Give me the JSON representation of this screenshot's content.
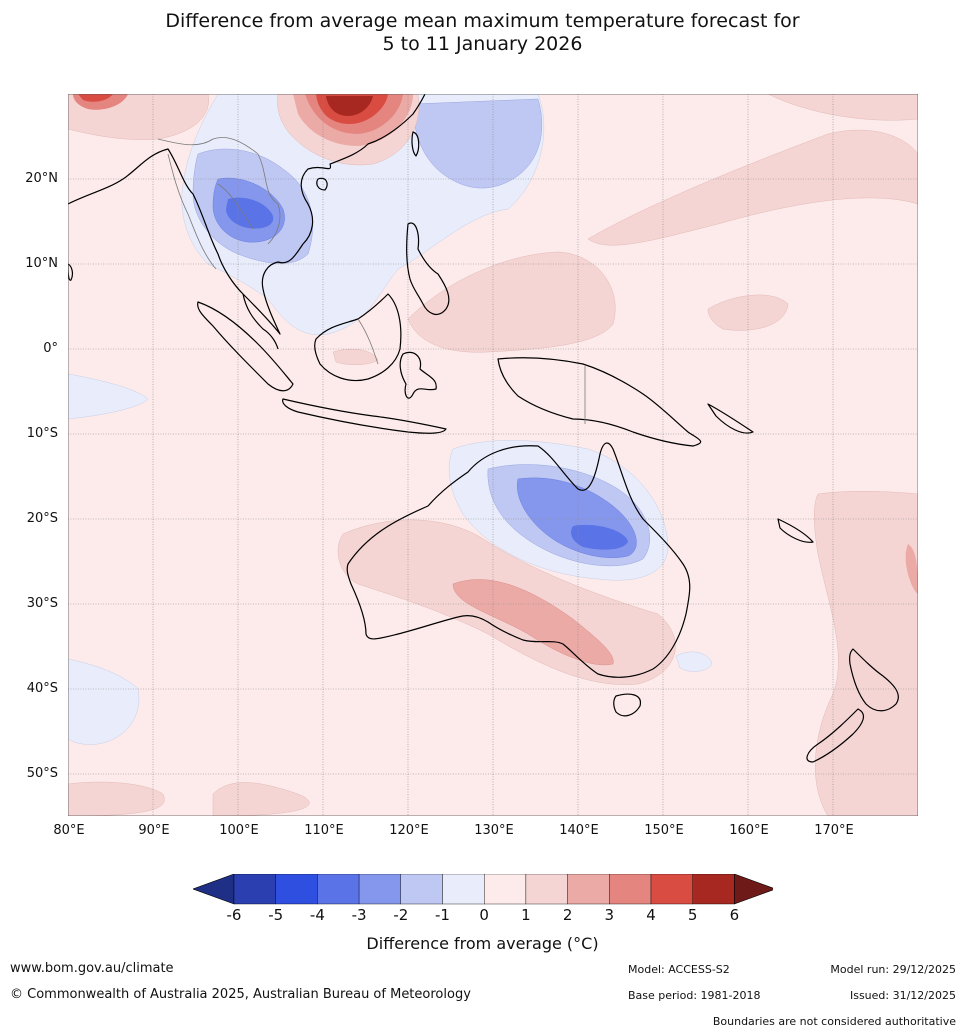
{
  "title": {
    "line1": "Difference from average mean maximum temperature forecast for",
    "line2": "5 to 11 January 2026"
  },
  "map": {
    "lat_labels": [
      "20°N",
      "10°N",
      "0°",
      "10°S",
      "20°S",
      "30°S",
      "40°S",
      "50°S"
    ],
    "lon_labels": [
      "80°E",
      "90°E",
      "100°E",
      "110°E",
      "120°E",
      "130°E",
      "140°E",
      "150°E",
      "160°E",
      "170°E"
    ],
    "lat_range": [
      -55,
      30
    ],
    "lon_range": [
      80,
      180
    ]
  },
  "colorbar": {
    "ticks": [
      "-6",
      "-5",
      "-4",
      "-3",
      "-2",
      "-1",
      "0",
      "1",
      "2",
      "3",
      "4",
      "5",
      "6"
    ],
    "colors": [
      "#1f2f86",
      "#2b3fb0",
      "#2f4fe0",
      "#5a73e6",
      "#8597ec",
      "#bfc7f3",
      "#e8ecfb",
      "#fcebea",
      "#f5d5d4",
      "#ecaaa6",
      "#e58580",
      "#d94c42",
      "#a62820",
      "#6e1a18"
    ],
    "title": "Difference from average (°C)"
  },
  "footer": {
    "website": "www.bom.gov.au/climate",
    "copyright": "© Commonwealth of Australia 2025, Australian Bureau of Meteorology",
    "model": "Model: ACCESS-S2",
    "base_period": "Base period: 1981-2018",
    "model_run": "Model run: 29/12/2025",
    "issued": "Issued: 31/12/2025",
    "disclaimer": "Boundaries are not considered authoritative"
  }
}
